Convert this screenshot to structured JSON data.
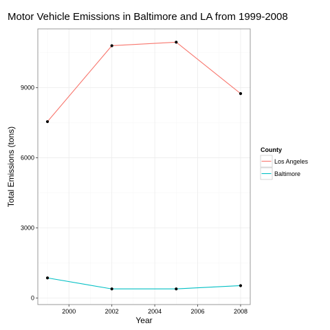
{
  "chart_data": {
    "type": "line",
    "title": "Motor Vehicle Emissions in Baltimore and LA from 1999-2008",
    "xlabel": "Year",
    "ylabel": "Total Emissions (tons)",
    "x": [
      1999,
      2002,
      2005,
      2008
    ],
    "xticks": [
      "2000",
      "2002",
      "2004",
      "2006",
      "2008"
    ],
    "yticks": [
      "0",
      "3000",
      "6000",
      "9000"
    ],
    "xlim": [
      1998.55,
      2008.45
    ],
    "ylim": [
      -280,
      11520
    ],
    "grid": true,
    "legend": {
      "title": "County",
      "position": "right"
    },
    "series": [
      {
        "name": "Los Angeles",
        "color": "#F8766D",
        "values": [
          7550,
          10800,
          10950,
          8750
        ]
      },
      {
        "name": "Baltimore",
        "color": "#00BFC4",
        "values": [
          860,
          390,
          390,
          530
        ]
      }
    ]
  }
}
